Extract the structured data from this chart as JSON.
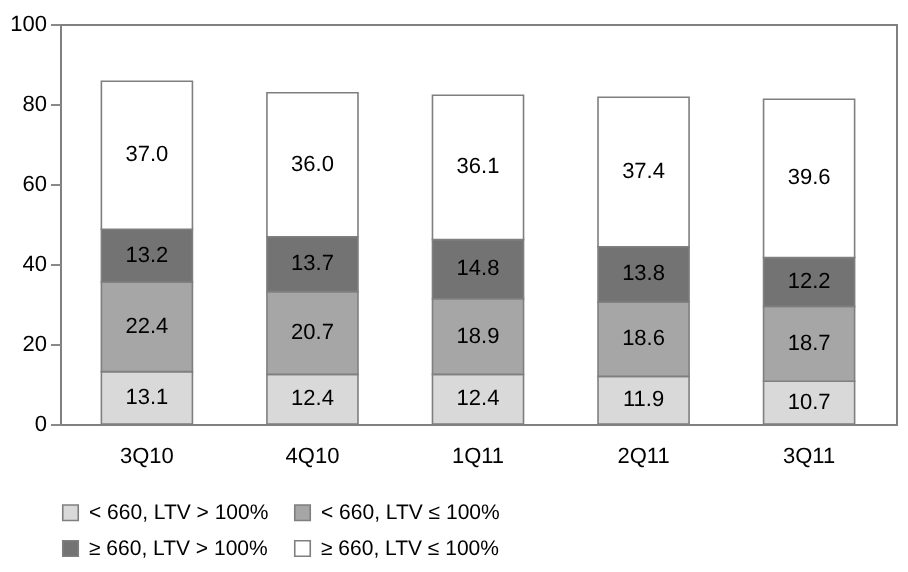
{
  "chart_data": {
    "type": "bar",
    "stacked": true,
    "categories": [
      "3Q10",
      "4Q10",
      "1Q11",
      "2Q11",
      "3Q11"
    ],
    "series": [
      {
        "name": "< 660, LTV > 100%",
        "color": "#d9d9d9",
        "values": [
          13.1,
          12.4,
          12.4,
          11.9,
          10.7
        ],
        "value_labels": [
          "13.1",
          "12.4",
          "12.4",
          "11.9",
          "10.7"
        ]
      },
      {
        "name": "< 660, LTV ≤ 100%",
        "color": "#a6a6a6",
        "values": [
          22.4,
          20.7,
          18.9,
          18.6,
          18.7
        ],
        "value_labels": [
          "22.4",
          "20.7",
          "18.9",
          "18.6",
          "18.7"
        ]
      },
      {
        "name": "≥ 660, LTV > 100%",
        "color": "#737373",
        "values": [
          13.2,
          13.7,
          14.8,
          13.8,
          12.2
        ],
        "value_labels": [
          "13.2",
          "13.7",
          "14.8",
          "13.8",
          "12.2"
        ]
      },
      {
        "name": "≥ 660, LTV ≤ 100%",
        "color": "#ffffff",
        "values": [
          37,
          36,
          36.1,
          37.4,
          39.6
        ],
        "value_labels": [
          "37.0",
          "36.0",
          "36.1",
          "37.4",
          "39.6"
        ]
      }
    ],
    "ylim": [
      0,
      100
    ],
    "yticks": [
      0,
      20,
      40,
      60,
      80,
      100
    ],
    "grid": false,
    "legend": "bottom"
  }
}
